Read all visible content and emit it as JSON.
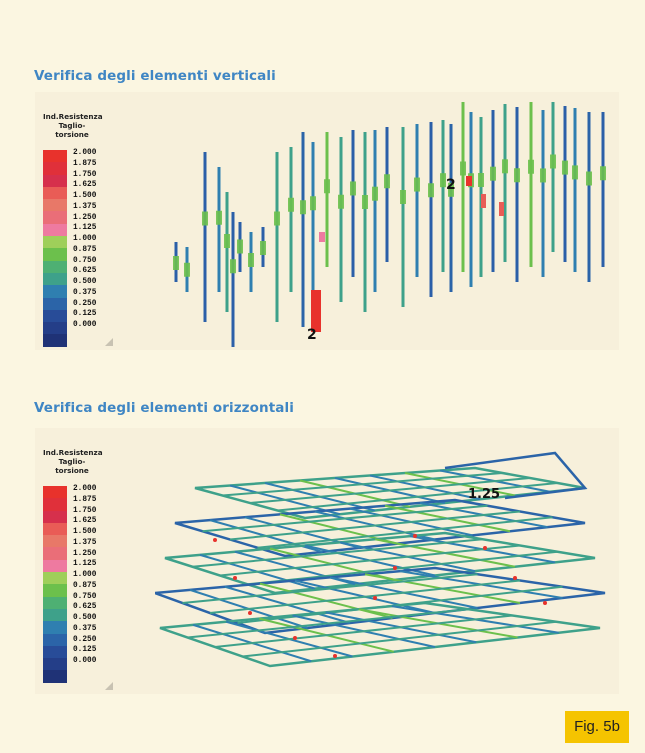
{
  "sections": [
    {
      "heading": "Verifica degli elementi verticali",
      "legend_title": "Ind.Resistenza Taglio-torsione",
      "annotations": [
        "2",
        "2"
      ]
    },
    {
      "heading": "Verifica degli elementi orizzontali",
      "legend_title": "Ind.Resistenza Taglio-torsione",
      "annotations": [
        "1.25"
      ]
    }
  ],
  "legend_values": [
    "2.000",
    "1.875",
    "1.750",
    "1.625",
    "1.500",
    "1.375",
    "1.250",
    "1.125",
    "1.000",
    "0.875",
    "0.750",
    "0.625",
    "0.500",
    "0.375",
    "0.250",
    "0.125",
    "0.000"
  ],
  "legend_colors": [
    "#e8322c",
    "#e0303a",
    "#d6304c",
    "#e95c56",
    "#e87868",
    "#ea6e78",
    "#ee7aa0",
    "#9fcf5a",
    "#6cc04c",
    "#4eb073",
    "#3ea18a",
    "#2f7fb0",
    "#2b64a8",
    "#284c98",
    "#243e88",
    "#1f3276"
  ],
  "figure_label": "Fig. 5b"
}
